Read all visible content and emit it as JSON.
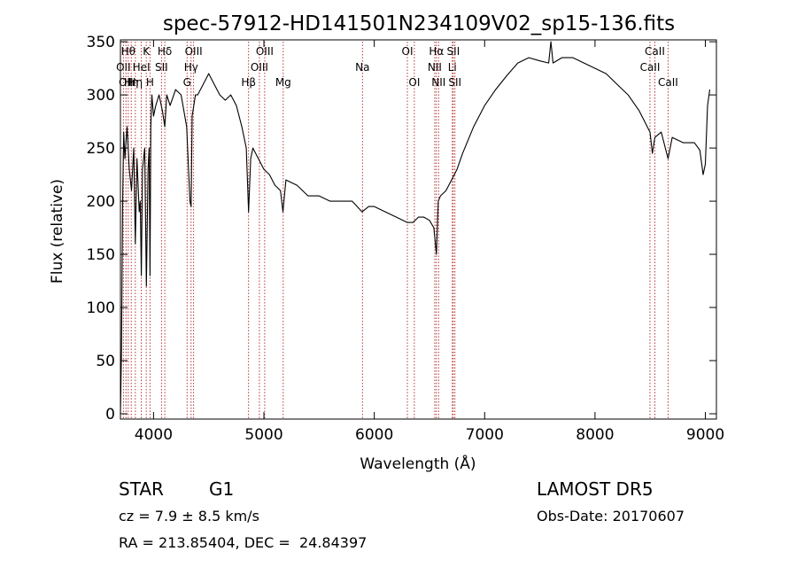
{
  "chart_data": {
    "type": "line",
    "title": "spec-57912-HD141501N234109V02_sp15-136.fits",
    "xlabel": "Wavelength (Å)",
    "ylabel": "Flux (relative)",
    "xlim": [
      3700,
      9100
    ],
    "ylim": [
      0,
      355
    ],
    "xticks": [
      4000,
      5000,
      6000,
      7000,
      8000,
      9000
    ],
    "yticks": [
      0,
      50,
      100,
      150,
      200,
      250,
      300,
      350
    ],
    "grid": false,
    "line_color": "#000000",
    "marker_color": "#b22222",
    "series": [
      {
        "x": [
          3700,
          3710,
          3720,
          3730,
          3740,
          3760,
          3780,
          3800,
          3820,
          3835,
          3850,
          3870,
          3880,
          3889,
          3900,
          3920,
          3935,
          3950,
          3960,
          3968,
          3975,
          3985,
          4000,
          4020,
          4050,
          4080,
          4102,
          4120,
          4150,
          4200,
          4250,
          4300,
          4330,
          4340,
          4350,
          4380,
          4400,
          4450,
          4500,
          4550,
          4600,
          4650,
          4700,
          4750,
          4800,
          4840,
          4861,
          4880,
          4900,
          4950,
          5000,
          5050,
          5100,
          5150,
          5172,
          5200,
          5300,
          5400,
          5500,
          5600,
          5700,
          5800,
          5890,
          5950,
          6000,
          6100,
          6200,
          6300,
          6350,
          6400,
          6450,
          6500,
          6540,
          6563,
          6580,
          6600,
          6650,
          6700,
          6750,
          6800,
          6900,
          7000,
          7100,
          7200,
          7300,
          7400,
          7500,
          7580,
          7600,
          7620,
          7700,
          7800,
          7900,
          8000,
          8100,
          8200,
          8300,
          8400,
          8498,
          8520,
          8542,
          8600,
          8662,
          8700,
          8800,
          8900,
          8950,
          8980,
          9000,
          9020,
          9040
        ],
        "y": [
          0,
          60,
          200,
          265,
          240,
          270,
          230,
          210,
          250,
          160,
          240,
          190,
          200,
          130,
          230,
          250,
          120,
          230,
          250,
          130,
          270,
          300,
          280,
          290,
          300,
          285,
          270,
          300,
          290,
          305,
          300,
          270,
          200,
          195,
          280,
          300,
          300,
          310,
          320,
          310,
          300,
          295,
          300,
          290,
          270,
          250,
          190,
          240,
          250,
          240,
          230,
          225,
          215,
          210,
          190,
          220,
          215,
          205,
          205,
          200,
          200,
          200,
          190,
          195,
          195,
          190,
          185,
          180,
          180,
          185,
          185,
          182,
          175,
          150,
          200,
          205,
          210,
          220,
          230,
          245,
          270,
          290,
          305,
          318,
          330,
          335,
          332,
          330,
          350,
          330,
          335,
          335,
          330,
          325,
          320,
          310,
          300,
          285,
          265,
          245,
          260,
          265,
          240,
          260,
          255,
          255,
          248,
          225,
          235,
          290,
          305
        ]
      }
    ],
    "line_markers": [
      {
        "x": 3727,
        "label": "OII",
        "row": 2
      },
      {
        "x": 3750,
        "label": "OII",
        "row": 3
      },
      {
        "x": 3771,
        "label": "Hθ",
        "row": 1
      },
      {
        "x": 3798,
        "label": "Hη",
        "row": 3
      },
      {
        "x": 3835,
        "label": "Hη",
        "row": 3
      },
      {
        "x": 3889,
        "label": "HeI",
        "row": 2
      },
      {
        "x": 3934,
        "label": "K",
        "row": 1
      },
      {
        "x": 3968,
        "label": "H",
        "row": 3
      },
      {
        "x": 4072,
        "label": "SII",
        "row": 2
      },
      {
        "x": 4102,
        "label": "Hδ",
        "row": 1
      },
      {
        "x": 4304,
        "label": "G",
        "row": 3
      },
      {
        "x": 4340,
        "label": "Hγ",
        "row": 2
      },
      {
        "x": 4363,
        "label": "OIII",
        "row": 1
      },
      {
        "x": 4861,
        "label": "Hβ",
        "row": 3
      },
      {
        "x": 4959,
        "label": "OIII",
        "row": 2
      },
      {
        "x": 5007,
        "label": "OIII",
        "row": 1
      },
      {
        "x": 5175,
        "label": "Mg",
        "row": 3
      },
      {
        "x": 5893,
        "label": "Na",
        "row": 2
      },
      {
        "x": 6300,
        "label": "OI",
        "row": 1
      },
      {
        "x": 6363,
        "label": "OI",
        "row": 3
      },
      {
        "x": 6548,
        "label": "NII",
        "row": 2
      },
      {
        "x": 6563,
        "label": "Hα",
        "row": 1
      },
      {
        "x": 6583,
        "label": "NII",
        "row": 3
      },
      {
        "x": 6707,
        "label": "Li",
        "row": 2
      },
      {
        "x": 6716,
        "label": "SII",
        "row": 1
      },
      {
        "x": 6731,
        "label": "SII",
        "row": 3
      },
      {
        "x": 8498,
        "label": "CaII",
        "row": 2
      },
      {
        "x": 8542,
        "label": "CaII",
        "row": 1
      },
      {
        "x": 8662,
        "label": "CaII",
        "row": 3
      }
    ]
  },
  "info": {
    "object_class": "STAR",
    "subclass": "G1",
    "survey": "LAMOST DR5",
    "redshift": "cz = 7.9 ± 8.5 km/s",
    "obs_date": "Obs-Date: 20170607",
    "coords": "RA = 213.85404, DEC =  24.84397"
  }
}
